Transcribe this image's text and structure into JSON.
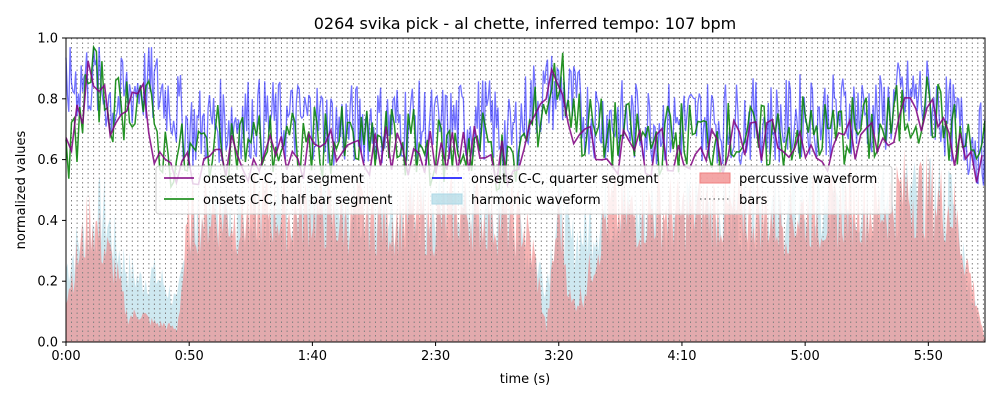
{
  "chart_data": {
    "type": "line",
    "title": "0264 svika pick - al chette, inferred tempo: 107 bpm",
    "xlabel": "time (s)",
    "ylabel": "normalized values",
    "xlim": [
      0,
      373
    ],
    "ylim": [
      0,
      1.0
    ],
    "x_ticks": [
      {
        "value": 0,
        "label": "0:00"
      },
      {
        "value": 50,
        "label": "0:50"
      },
      {
        "value": 100,
        "label": "1:40"
      },
      {
        "value": 150,
        "label": "2:30"
      },
      {
        "value": 200,
        "label": "3:20"
      },
      {
        "value": 250,
        "label": "4:10"
      },
      {
        "value": 300,
        "label": "5:00"
      },
      {
        "value": 350,
        "label": "5:50"
      }
    ],
    "y_ticks": [
      {
        "value": 0.0,
        "label": "0.0"
      },
      {
        "value": 0.2,
        "label": "0.2"
      },
      {
        "value": 0.4,
        "label": "0.4"
      },
      {
        "value": 0.6,
        "label": "0.6"
      },
      {
        "value": 0.8,
        "label": "0.8"
      },
      {
        "value": 1.0,
        "label": "1.0"
      }
    ],
    "bar_period_s": 2.243,
    "legend_position": "center",
    "legend": [
      {
        "label": "onsets C-C, bar segment",
        "kind": "line",
        "color": "#800080"
      },
      {
        "label": "onsets C-C, half bar segment",
        "kind": "line",
        "color": "#008000"
      },
      {
        "label": "onsets C-C, quarter segment",
        "kind": "line",
        "color": "#0000ff"
      },
      {
        "label": "harmonic waveform",
        "kind": "patch",
        "color": "#add8e6"
      },
      {
        "label": "percussive waveform",
        "kind": "patch",
        "color": "#f08080"
      },
      {
        "label": "bars",
        "kind": "dotted",
        "color": "#808080"
      }
    ],
    "series": [
      {
        "name": "onsets C-C, quarter segment",
        "color": "#0000ff",
        "x": [
          0,
          10,
          20,
          30,
          40,
          50,
          60,
          70,
          80,
          90,
          100,
          110,
          120,
          130,
          140,
          150,
          160,
          170,
          180,
          190,
          200,
          210,
          220,
          230,
          240,
          250,
          260,
          270,
          280,
          290,
          300,
          310,
          320,
          330,
          340,
          350,
          360,
          370
        ],
        "y": [
          0.85,
          0.87,
          0.78,
          0.85,
          0.82,
          0.7,
          0.72,
          0.74,
          0.73,
          0.72,
          0.74,
          0.7,
          0.72,
          0.72,
          0.73,
          0.7,
          0.72,
          0.74,
          0.66,
          0.8,
          0.83,
          0.75,
          0.73,
          0.72,
          0.72,
          0.72,
          0.73,
          0.72,
          0.73,
          0.72,
          0.75,
          0.74,
          0.76,
          0.74,
          0.8,
          0.8,
          0.72,
          0.65
        ]
      },
      {
        "name": "onsets C-C, half bar segment",
        "color": "#008000",
        "x": [
          0,
          10,
          20,
          30,
          40,
          50,
          60,
          70,
          80,
          90,
          100,
          110,
          120,
          130,
          140,
          150,
          160,
          170,
          180,
          190,
          200,
          210,
          220,
          230,
          240,
          250,
          260,
          270,
          280,
          290,
          300,
          310,
          320,
          330,
          340,
          350,
          360,
          370
        ],
        "y": [
          0.56,
          0.87,
          0.76,
          0.82,
          0.62,
          0.6,
          0.66,
          0.66,
          0.65,
          0.64,
          0.66,
          0.66,
          0.64,
          0.66,
          0.65,
          0.62,
          0.64,
          0.66,
          0.55,
          0.72,
          0.88,
          0.7,
          0.68,
          0.67,
          0.66,
          0.68,
          0.67,
          0.68,
          0.66,
          0.68,
          0.7,
          0.68,
          0.7,
          0.68,
          0.75,
          0.78,
          0.68,
          0.62
        ]
      },
      {
        "name": "onsets C-C, bar segment",
        "color": "#800080",
        "x": [
          0,
          10,
          20,
          30,
          40,
          50,
          60,
          70,
          80,
          90,
          100,
          110,
          120,
          130,
          140,
          150,
          160,
          170,
          180,
          190,
          200,
          210,
          220,
          230,
          240,
          250,
          260,
          270,
          280,
          290,
          300,
          310,
          320,
          330,
          340,
          350,
          360,
          370
        ],
        "y": [
          0.6,
          0.88,
          0.7,
          0.82,
          0.55,
          0.6,
          0.6,
          0.62,
          0.61,
          0.6,
          0.62,
          0.62,
          0.62,
          0.64,
          0.62,
          0.62,
          0.62,
          0.63,
          0.56,
          0.68,
          0.86,
          0.65,
          0.64,
          0.64,
          0.63,
          0.65,
          0.64,
          0.64,
          0.64,
          0.65,
          0.67,
          0.65,
          0.68,
          0.66,
          0.72,
          0.76,
          0.66,
          0.6
        ]
      },
      {
        "name": "harmonic waveform",
        "color": "#add8e6",
        "x": [
          0,
          5,
          10,
          15,
          20,
          25,
          30,
          35,
          40,
          45,
          50,
          60,
          70,
          80,
          90,
          100,
          110,
          120,
          130,
          140,
          150,
          160,
          170,
          180,
          185,
          190,
          195,
          200,
          205,
          210,
          220,
          230,
          240,
          250,
          260,
          270,
          280,
          290,
          300,
          310,
          320,
          330,
          340,
          350,
          360,
          365,
          370,
          373
        ],
        "y": [
          0.3,
          0.4,
          0.45,
          0.55,
          0.4,
          0.3,
          0.25,
          0.28,
          0.24,
          0.15,
          0.45,
          0.52,
          0.52,
          0.55,
          0.52,
          0.55,
          0.52,
          0.54,
          0.52,
          0.55,
          0.52,
          0.55,
          0.52,
          0.55,
          0.4,
          0.35,
          0.25,
          0.58,
          0.4,
          0.45,
          0.55,
          0.52,
          0.55,
          0.52,
          0.55,
          0.52,
          0.55,
          0.52,
          0.55,
          0.52,
          0.58,
          0.55,
          0.6,
          0.58,
          0.58,
          0.3,
          0.1,
          0.0
        ]
      },
      {
        "name": "percussive waveform",
        "color": "#f08080",
        "x": [
          0,
          5,
          10,
          15,
          20,
          25,
          30,
          35,
          40,
          45,
          50,
          60,
          70,
          80,
          90,
          100,
          110,
          120,
          130,
          140,
          150,
          160,
          170,
          180,
          185,
          190,
          195,
          200,
          205,
          210,
          220,
          230,
          240,
          250,
          260,
          270,
          280,
          290,
          300,
          310,
          320,
          330,
          340,
          350,
          360,
          365,
          370,
          373
        ],
        "y": [
          0.2,
          0.35,
          0.52,
          0.4,
          0.3,
          0.1,
          0.12,
          0.08,
          0.07,
          0.05,
          0.5,
          0.55,
          0.5,
          0.56,
          0.52,
          0.55,
          0.5,
          0.53,
          0.5,
          0.52,
          0.5,
          0.54,
          0.52,
          0.5,
          0.5,
          0.35,
          0.05,
          0.55,
          0.15,
          0.2,
          0.55,
          0.52,
          0.55,
          0.52,
          0.56,
          0.52,
          0.55,
          0.5,
          0.54,
          0.52,
          0.58,
          0.55,
          0.62,
          0.6,
          0.55,
          0.35,
          0.15,
          0.0
        ]
      }
    ]
  }
}
